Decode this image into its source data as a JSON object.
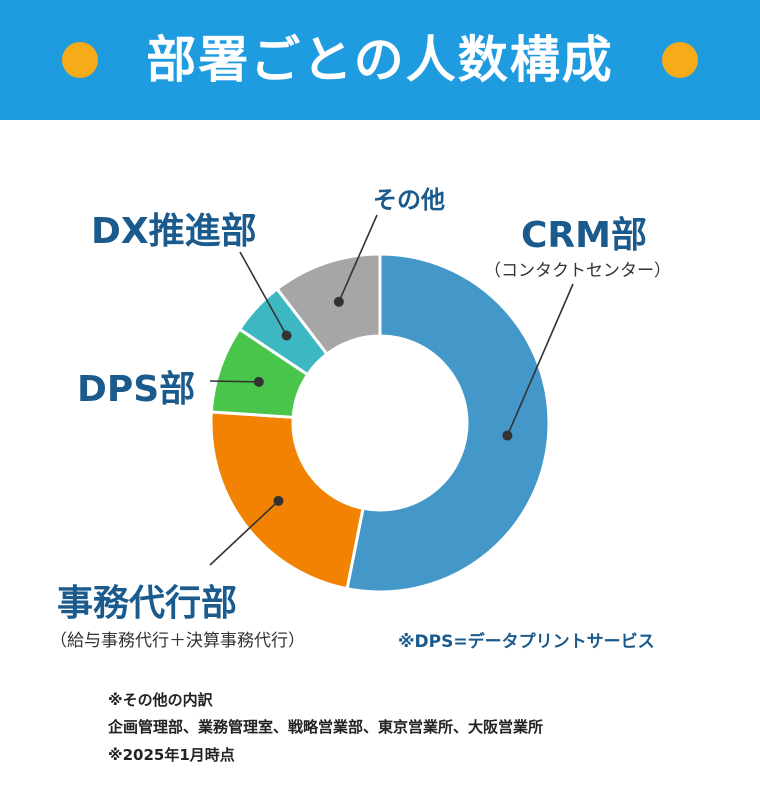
{
  "header": {
    "title": "部署ごとの人数構成",
    "bg_color": "#1f9be0",
    "dot_color": "#f6ac19"
  },
  "chart_data": {
    "type": "pie",
    "donut": true,
    "categories": [
      "CRM部",
      "事務代行部",
      "DPS部",
      "DX推進部",
      "その他"
    ],
    "sublabels": [
      "（コンタクトセンター）",
      "（給与事務代行＋決算事務代行）",
      "",
      "",
      ""
    ],
    "values": [
      51,
      22,
      8,
      5,
      10
    ],
    "colors": [
      "#4497c9",
      "#f18202",
      "#49c54c",
      "#3db8c3",
      "#a6a6a6"
    ]
  },
  "notes": {
    "dps": "※DPS=データプリントサービス",
    "others_title": "※その他の内訳",
    "others_list": "企画管理部、業務管理室、戦略営業部、東京営業所、大阪営業所",
    "date": "※2025年1月時点"
  }
}
